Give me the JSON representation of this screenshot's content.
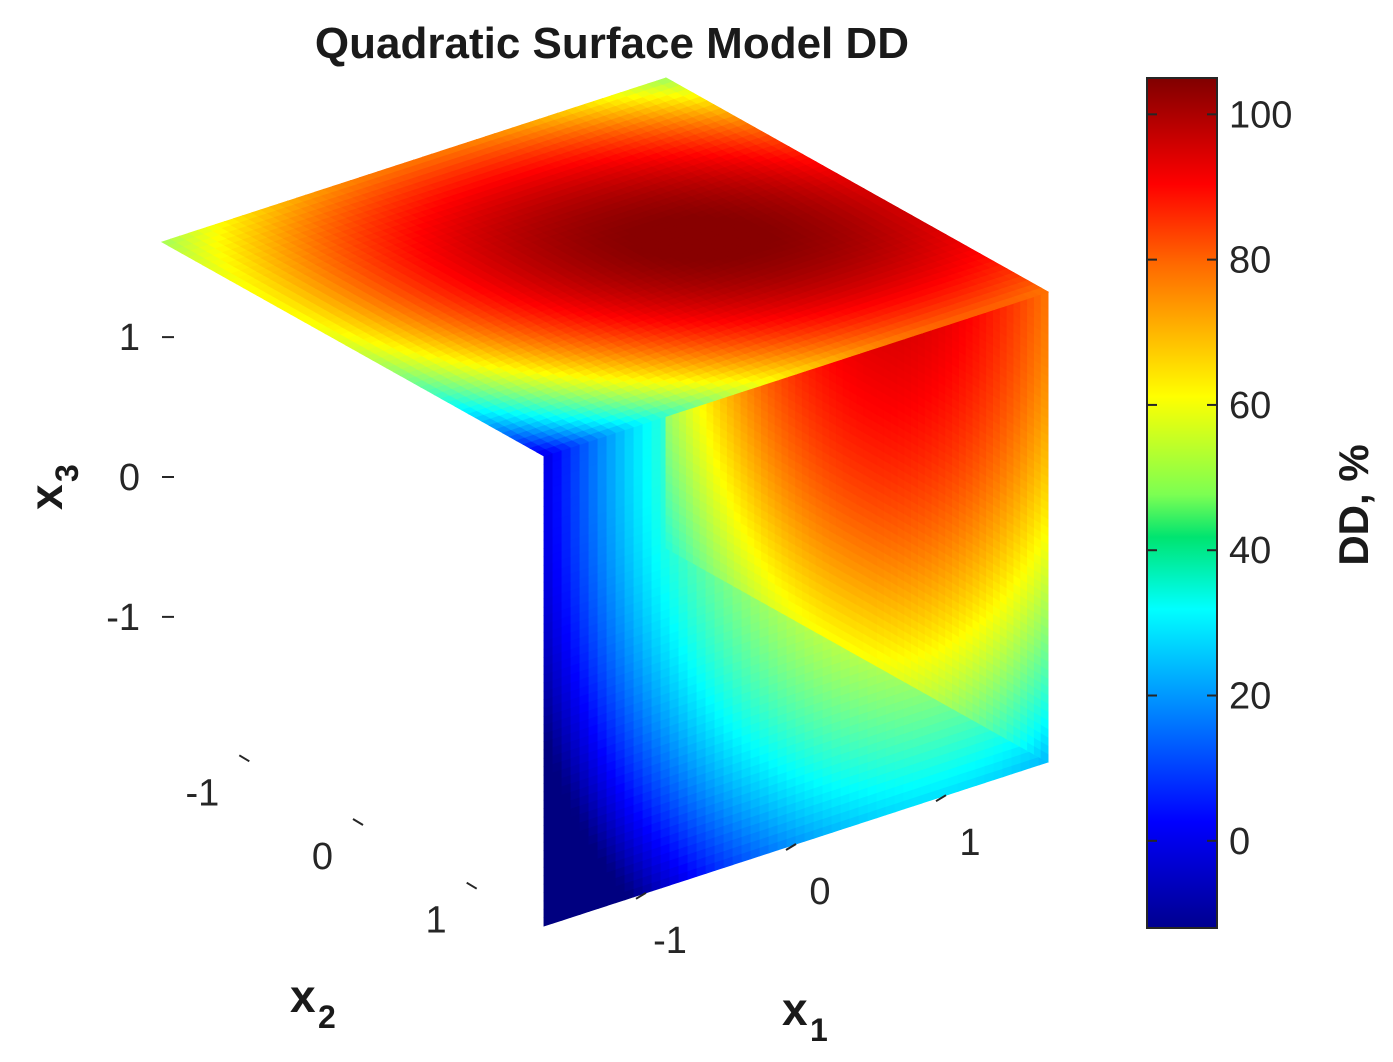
{
  "chart_data": {
    "type": "heatmap",
    "plot_style": "3D slice view of a cube (faces x1 = max, x2 = max, x3 = max)",
    "title": "Quadratic Surface Model DD",
    "axes": {
      "x1": {
        "label": "x",
        "subscript": "1",
        "ticks": [
          -1,
          0,
          1
        ],
        "tick_labels": [
          "-1",
          "0",
          "1"
        ],
        "range": [
          -1.68,
          1.68
        ]
      },
      "x2": {
        "label": "x",
        "subscript": "2",
        "ticks": [
          -1,
          0,
          1
        ],
        "tick_labels": [
          "-1",
          "0",
          "1"
        ],
        "range": [
          -1.68,
          1.68
        ]
      },
      "x3": {
        "label": "x",
        "subscript": "3",
        "ticks": [
          -1,
          0,
          1
        ],
        "tick_labels": [
          "1",
          "0",
          "-1"
        ],
        "range": [
          -1.68,
          1.68
        ]
      }
    },
    "colorbar": {
      "label": "DD, %",
      "range": [
        -12,
        105
      ],
      "ticks": [
        0,
        20,
        40,
        60,
        80,
        100
      ],
      "tick_labels": [
        "0",
        "20",
        "40",
        "60",
        "80",
        "100"
      ],
      "colormap": "jet"
    },
    "faces": {
      "left_face": {
        "fixed": "x2 = 1.68",
        "min_value": -12,
        "max_value": 48
      },
      "top_face": {
        "fixed": "x3 = 1.68",
        "min_value": 40,
        "max_value": 98
      },
      "right_face": {
        "fixed": "x1 = 1.68",
        "min_value": 55,
        "max_value": 103,
        "max_at": {
          "x2": 0.3,
          "x3": -0.9
        }
      }
    },
    "grid": false,
    "legend": "none"
  }
}
